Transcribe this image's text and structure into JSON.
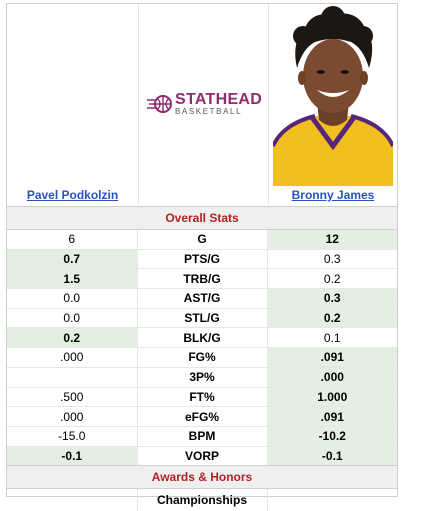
{
  "players": {
    "left": {
      "name": "Pavel Podkolzin"
    },
    "right": {
      "name": "Bronny James"
    }
  },
  "logo": {
    "line1": "STATHEAD",
    "line2": "BASKETBALL"
  },
  "sections": {
    "overall": "Overall Stats",
    "awards": "Awards & Honors",
    "championships": "Championships"
  },
  "rows": [
    {
      "stat": "G",
      "left": "6",
      "right": "12",
      "winner": "right"
    },
    {
      "stat": "PTS/G",
      "left": "0.7",
      "right": "0.3",
      "winner": "left"
    },
    {
      "stat": "TRB/G",
      "left": "1.5",
      "right": "0.2",
      "winner": "left"
    },
    {
      "stat": "AST/G",
      "left": "0.0",
      "right": "0.3",
      "winner": "right"
    },
    {
      "stat": "STL/G",
      "left": "0.0",
      "right": "0.2",
      "winner": "right"
    },
    {
      "stat": "BLK/G",
      "left": "0.2",
      "right": "0.1",
      "winner": "left"
    },
    {
      "stat": "FG%",
      "left": ".000",
      "right": ".091",
      "winner": "right"
    },
    {
      "stat": "3P%",
      "left": "",
      "right": ".000",
      "winner": "right"
    },
    {
      "stat": "FT%",
      "left": ".500",
      "right": "1.000",
      "winner": "right"
    },
    {
      "stat": "eFG%",
      "left": ".000",
      "right": ".091",
      "winner": "right"
    },
    {
      "stat": "BPM",
      "left": "-15.0",
      "right": "-10.2",
      "winner": "right"
    },
    {
      "stat": "VORP",
      "left": "-0.1",
      "right": "-0.1",
      "winner": "both"
    }
  ],
  "colors": {
    "winner_bg": "#e3efe0",
    "section_text": "#b12323",
    "link": "#2a52be",
    "brand": "#8e2c6e"
  }
}
